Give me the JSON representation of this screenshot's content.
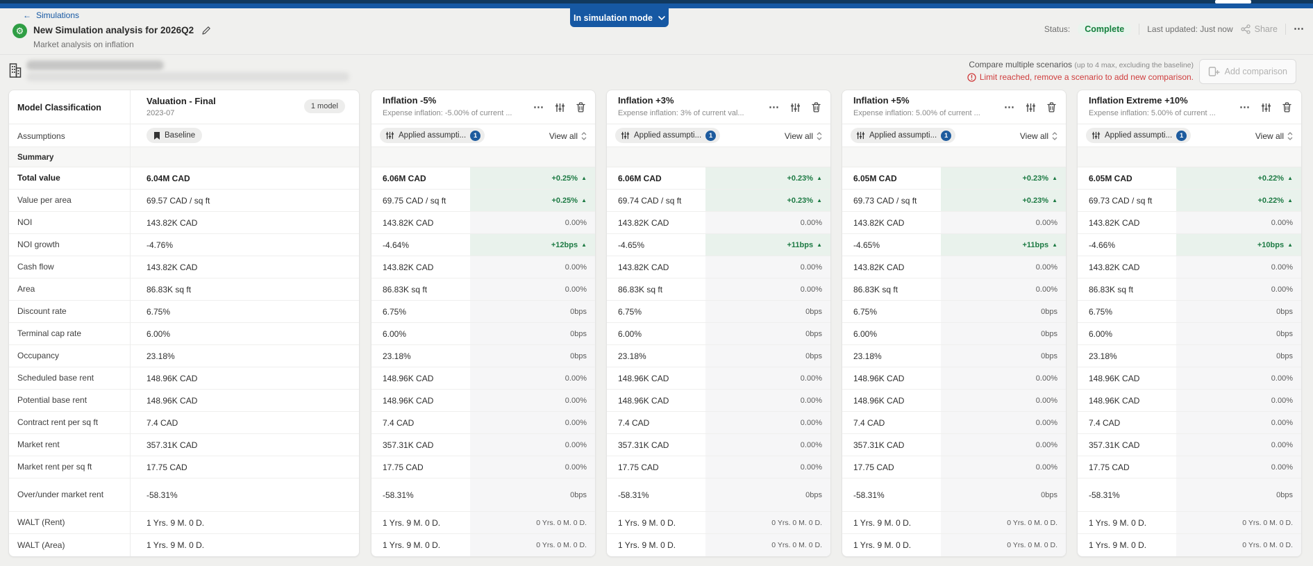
{
  "topbar": {
    "mode_button": "In simulation mode"
  },
  "header": {
    "breadcrumb": "Simulations",
    "back_arrow": "←",
    "title": "New Simulation analysis for 2026Q2",
    "subtitle": "Market analysis on inflation",
    "status_label": "Status:",
    "status_value": "Complete",
    "last_updated": "Last updated: Just now",
    "share_label": "Share"
  },
  "compare_bar": {
    "title": "Compare multiple scenarios",
    "title_note": "(up to 4 max, excluding the baseline)",
    "warning": "Limit reached, remove a scenario to add new comparison.",
    "add_button": "Add comparison"
  },
  "icons": {
    "more": "⋯",
    "delta_up": "▲",
    "gear": "⚙"
  },
  "colors": {
    "accent_blue": "#1658a3",
    "scenario_green": "#2f9e44",
    "status_green": "#15803d",
    "delta_green_text": "#1c7a43",
    "delta_green_bg": "#e9f2ec",
    "warning_red": "#cf3d3d"
  },
  "table": {
    "label_header": "Model Classification",
    "baseline_column": {
      "title": "Valuation - Final",
      "date": "2023-07",
      "badge": "1 model",
      "assumption_pill": "Baseline"
    },
    "assumptions_row_label": "Assumptions",
    "section_label": "Summary",
    "applied_pill": "Applied assumpti...",
    "applied_count": "1",
    "view_all": "View all",
    "metrics": [
      {
        "label": "Total value",
        "baseline": "6.04M CAD",
        "bold": true
      },
      {
        "label": "Value per area",
        "baseline": "69.57 CAD / sq ft"
      },
      {
        "label": "NOI",
        "baseline": "143.82K CAD"
      },
      {
        "label": "NOI growth",
        "baseline": "-4.76%"
      },
      {
        "label": "Cash flow",
        "baseline": "143.82K CAD"
      },
      {
        "label": "Area",
        "baseline": "86.83K sq ft"
      },
      {
        "label": "Discount rate",
        "baseline": "6.75%"
      },
      {
        "label": "Terminal cap rate",
        "baseline": "6.00%"
      },
      {
        "label": "Occupancy",
        "baseline": "23.18%"
      },
      {
        "label": "Scheduled base rent",
        "baseline": "148.96K CAD"
      },
      {
        "label": "Potential base rent",
        "baseline": "148.96K CAD"
      },
      {
        "label": "Contract rent per sq ft",
        "baseline": "7.4 CAD"
      },
      {
        "label": "Market rent",
        "baseline": "357.31K CAD"
      },
      {
        "label": "Market rent per sq ft",
        "baseline": "17.75 CAD"
      },
      {
        "label": "Over/under market rent",
        "baseline": "-58.31%",
        "tall": true
      },
      {
        "label": "WALT (Rent)",
        "baseline": "1 Yrs. 9 M. 0 D."
      },
      {
        "label": "WALT (Area)",
        "baseline": "1 Yrs. 9 M. 0 D."
      }
    ],
    "scenarios": [
      {
        "title": "Inflation -5%",
        "subtitle": "Expense inflation: -5.00% of current ...",
        "rows": [
          {
            "value": "6.06M CAD",
            "delta": "+0.25%",
            "type": "up"
          },
          {
            "value": "69.75 CAD / sq ft",
            "delta": "+0.25%",
            "type": "up"
          },
          {
            "value": "143.82K CAD",
            "delta": "0.00%",
            "type": "zero"
          },
          {
            "value": "-4.64%",
            "delta": "+12bps",
            "type": "up"
          },
          {
            "value": "143.82K CAD",
            "delta": "0.00%",
            "type": "zero"
          },
          {
            "value": "86.83K sq ft",
            "delta": "0.00%",
            "type": "zero"
          },
          {
            "value": "6.75%",
            "delta": "0bps",
            "type": "zero"
          },
          {
            "value": "6.00%",
            "delta": "0bps",
            "type": "zero"
          },
          {
            "value": "23.18%",
            "delta": "0bps",
            "type": "zero"
          },
          {
            "value": "148.96K CAD",
            "delta": "0.00%",
            "type": "zero"
          },
          {
            "value": "148.96K CAD",
            "delta": "0.00%",
            "type": "zero"
          },
          {
            "value": "7.4 CAD",
            "delta": "0.00%",
            "type": "zero"
          },
          {
            "value": "357.31K CAD",
            "delta": "0.00%",
            "type": "zero"
          },
          {
            "value": "17.75 CAD",
            "delta": "0.00%",
            "type": "zero"
          },
          {
            "value": "-58.31%",
            "delta": "0bps",
            "type": "zero"
          },
          {
            "value": "1 Yrs. 9 M. 0 D.",
            "delta": "0 Yrs. 0 M. 0 D.",
            "type": "zero",
            "small": true
          },
          {
            "value": "1 Yrs. 9 M. 0 D.",
            "delta": "0 Yrs. 0 M. 0 D.",
            "type": "zero",
            "small": true
          }
        ]
      },
      {
        "title": "Inflation +3%",
        "subtitle": "Expense inflation: 3% of current val...",
        "rows": [
          {
            "value": "6.06M CAD",
            "delta": "+0.23%",
            "type": "up"
          },
          {
            "value": "69.74 CAD / sq ft",
            "delta": "+0.23%",
            "type": "up"
          },
          {
            "value": "143.82K CAD",
            "delta": "0.00%",
            "type": "zero"
          },
          {
            "value": "-4.65%",
            "delta": "+11bps",
            "type": "up"
          },
          {
            "value": "143.82K CAD",
            "delta": "0.00%",
            "type": "zero"
          },
          {
            "value": "86.83K sq ft",
            "delta": "0.00%",
            "type": "zero"
          },
          {
            "value": "6.75%",
            "delta": "0bps",
            "type": "zero"
          },
          {
            "value": "6.00%",
            "delta": "0bps",
            "type": "zero"
          },
          {
            "value": "23.18%",
            "delta": "0bps",
            "type": "zero"
          },
          {
            "value": "148.96K CAD",
            "delta": "0.00%",
            "type": "zero"
          },
          {
            "value": "148.96K CAD",
            "delta": "0.00%",
            "type": "zero"
          },
          {
            "value": "7.4 CAD",
            "delta": "0.00%",
            "type": "zero"
          },
          {
            "value": "357.31K CAD",
            "delta": "0.00%",
            "type": "zero"
          },
          {
            "value": "17.75 CAD",
            "delta": "0.00%",
            "type": "zero"
          },
          {
            "value": "-58.31%",
            "delta": "0bps",
            "type": "zero"
          },
          {
            "value": "1 Yrs. 9 M. 0 D.",
            "delta": "0 Yrs. 0 M. 0 D.",
            "type": "zero",
            "small": true
          },
          {
            "value": "1 Yrs. 9 M. 0 D.",
            "delta": "0 Yrs. 0 M. 0 D.",
            "type": "zero",
            "small": true
          }
        ]
      },
      {
        "title": "Inflation +5%",
        "subtitle": "Expense inflation: 5.00% of current ...",
        "rows": [
          {
            "value": "6.05M CAD",
            "delta": "+0.23%",
            "type": "up"
          },
          {
            "value": "69.73 CAD / sq ft",
            "delta": "+0.23%",
            "type": "up"
          },
          {
            "value": "143.82K CAD",
            "delta": "0.00%",
            "type": "zero"
          },
          {
            "value": "-4.65%",
            "delta": "+11bps",
            "type": "up"
          },
          {
            "value": "143.82K CAD",
            "delta": "0.00%",
            "type": "zero"
          },
          {
            "value": "86.83K sq ft",
            "delta": "0.00%",
            "type": "zero"
          },
          {
            "value": "6.75%",
            "delta": "0bps",
            "type": "zero"
          },
          {
            "value": "6.00%",
            "delta": "0bps",
            "type": "zero"
          },
          {
            "value": "23.18%",
            "delta": "0bps",
            "type": "zero"
          },
          {
            "value": "148.96K CAD",
            "delta": "0.00%",
            "type": "zero"
          },
          {
            "value": "148.96K CAD",
            "delta": "0.00%",
            "type": "zero"
          },
          {
            "value": "7.4 CAD",
            "delta": "0.00%",
            "type": "zero"
          },
          {
            "value": "357.31K CAD",
            "delta": "0.00%",
            "type": "zero"
          },
          {
            "value": "17.75 CAD",
            "delta": "0.00%",
            "type": "zero"
          },
          {
            "value": "-58.31%",
            "delta": "0bps",
            "type": "zero"
          },
          {
            "value": "1 Yrs. 9 M. 0 D.",
            "delta": "0 Yrs. 0 M. 0 D.",
            "type": "zero",
            "small": true
          },
          {
            "value": "1 Yrs. 9 M. 0 D.",
            "delta": "0 Yrs. 0 M. 0 D.",
            "type": "zero",
            "small": true
          }
        ]
      },
      {
        "title": "Inflation Extreme +10%",
        "subtitle": "Expense inflation: 5.00% of current ...",
        "rows": [
          {
            "value": "6.05M CAD",
            "delta": "+0.22%",
            "type": "up"
          },
          {
            "value": "69.73 CAD / sq ft",
            "delta": "+0.22%",
            "type": "up"
          },
          {
            "value": "143.82K CAD",
            "delta": "0.00%",
            "type": "zero"
          },
          {
            "value": "-4.66%",
            "delta": "+10bps",
            "type": "up"
          },
          {
            "value": "143.82K CAD",
            "delta": "0.00%",
            "type": "zero"
          },
          {
            "value": "86.83K sq ft",
            "delta": "0.00%",
            "type": "zero"
          },
          {
            "value": "6.75%",
            "delta": "0bps",
            "type": "zero"
          },
          {
            "value": "6.00%",
            "delta": "0bps",
            "type": "zero"
          },
          {
            "value": "23.18%",
            "delta": "0bps",
            "type": "zero"
          },
          {
            "value": "148.96K CAD",
            "delta": "0.00%",
            "type": "zero"
          },
          {
            "value": "148.96K CAD",
            "delta": "0.00%",
            "type": "zero"
          },
          {
            "value": "7.4 CAD",
            "delta": "0.00%",
            "type": "zero"
          },
          {
            "value": "357.31K CAD",
            "delta": "0.00%",
            "type": "zero"
          },
          {
            "value": "17.75 CAD",
            "delta": "0.00%",
            "type": "zero"
          },
          {
            "value": "-58.31%",
            "delta": "0bps",
            "type": "zero"
          },
          {
            "value": "1 Yrs. 9 M. 0 D.",
            "delta": "0 Yrs. 0 M. 0 D.",
            "type": "zero",
            "small": true
          },
          {
            "value": "1 Yrs. 9 M. 0 D.",
            "delta": "0 Yrs. 0 M. 0 D.",
            "type": "zero",
            "small": true
          }
        ]
      }
    ]
  }
}
